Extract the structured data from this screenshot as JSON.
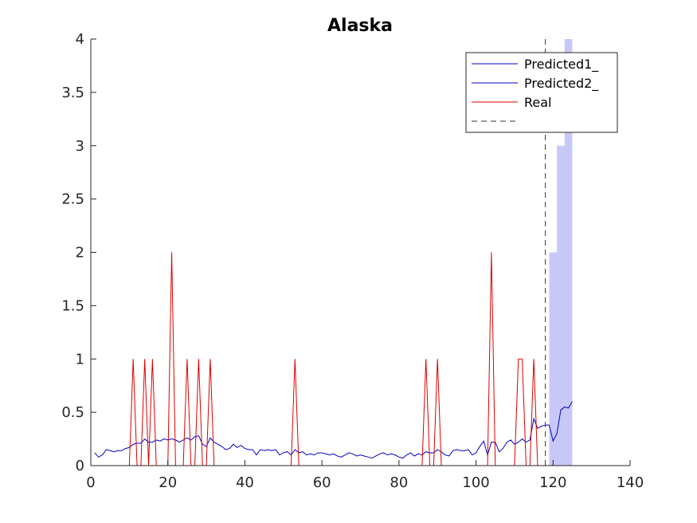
{
  "chart_data": {
    "type": "line",
    "title": "Alaska",
    "xlabel": "",
    "ylabel": "",
    "xlim": [
      0,
      140
    ],
    "ylim": [
      0,
      4
    ],
    "xticks": [
      0,
      20,
      40,
      60,
      80,
      100,
      120,
      140
    ],
    "yticks": [
      0,
      0.5,
      1,
      1.5,
      2,
      2.5,
      3,
      3.5,
      4
    ],
    "grid": false,
    "legend_position": "top-right",
    "legend": [
      "Predicted1_",
      "Predicted2_",
      "Real",
      ""
    ],
    "colors": {
      "predicted": "#0000c8",
      "real": "#dd0000",
      "band": "#c8c8f8",
      "divider": "#333333"
    },
    "divider_x": 118,
    "series": [
      {
        "name": "Predicted1_",
        "x": [
          1,
          2,
          3,
          4,
          5,
          6,
          7,
          8,
          9,
          10,
          11,
          12,
          13,
          14,
          15,
          16,
          17,
          18,
          19,
          20,
          21,
          22,
          23,
          24,
          25,
          26,
          27,
          28,
          29,
          30,
          31,
          32,
          33,
          34,
          35,
          36,
          37,
          38,
          39,
          40,
          41,
          42,
          43,
          44,
          45,
          46,
          47,
          48,
          49,
          50,
          51,
          52,
          53,
          54,
          55,
          56,
          57,
          58,
          59,
          60,
          61,
          62,
          63,
          64,
          65,
          66,
          67,
          68,
          69,
          70,
          71,
          72,
          73,
          74,
          75,
          76,
          77,
          78,
          79,
          80,
          81,
          82,
          83,
          84,
          85,
          86,
          87,
          88,
          89,
          90,
          91,
          92,
          93,
          94,
          95,
          96,
          97,
          98,
          99,
          100,
          101,
          102,
          103,
          104,
          105,
          106,
          107,
          108,
          109,
          110,
          111,
          112,
          113,
          114,
          115,
          116,
          117,
          118
        ],
        "values": [
          0.12,
          0.08,
          0.1,
          0.15,
          0.14,
          0.13,
          0.14,
          0.14,
          0.16,
          0.17,
          0.2,
          0.21,
          0.21,
          0.25,
          0.22,
          0.22,
          0.24,
          0.23,
          0.25,
          0.24,
          0.25,
          0.24,
          0.22,
          0.24,
          0.26,
          0.24,
          0.27,
          0.28,
          0.2,
          0.18,
          0.26,
          0.22,
          0.2,
          0.18,
          0.15,
          0.16,
          0.2,
          0.17,
          0.19,
          0.16,
          0.15,
          0.15,
          0.1,
          0.15,
          0.14,
          0.15,
          0.14,
          0.15,
          0.1,
          0.12,
          0.13,
          0.1,
          0.15,
          0.12,
          0.13,
          0.1,
          0.11,
          0.1,
          0.12,
          0.12,
          0.11,
          0.1,
          0.11,
          0.09,
          0.08,
          0.1,
          0.12,
          0.11,
          0.09,
          0.1,
          0.09,
          0.08,
          0.07,
          0.09,
          0.11,
          0.12,
          0.1,
          0.11,
          0.1,
          0.08,
          0.07,
          0.1,
          0.12,
          0.09,
          0.11,
          0.1,
          0.13,
          0.12,
          0.12,
          0.15,
          0.13,
          0.1,
          0.09,
          0.14,
          0.15,
          0.14,
          0.14,
          0.15,
          0.1,
          0.12,
          0.18,
          0.23,
          0.1,
          0.22,
          0.22,
          0.13,
          0.16,
          0.22,
          0.24,
          0.2,
          0.22,
          0.25,
          0.22,
          0.24,
          0.44,
          0.35,
          0.37,
          0.38
        ]
      },
      {
        "name": "Predicted2_",
        "x": [
          118,
          119,
          120,
          121,
          122,
          123,
          124,
          125
        ],
        "values": [
          0.38,
          0.38,
          0.23,
          0.3,
          0.52,
          0.55,
          0.54,
          0.6
        ]
      },
      {
        "name": "Real",
        "x": [
          1,
          2,
          3,
          4,
          5,
          6,
          7,
          8,
          9,
          10,
          11,
          12,
          13,
          14,
          15,
          16,
          17,
          18,
          19,
          20,
          21,
          22,
          23,
          24,
          25,
          26,
          27,
          28,
          29,
          30,
          31,
          32,
          33,
          34,
          35,
          36,
          37,
          38,
          39,
          40,
          41,
          42,
          43,
          44,
          45,
          46,
          47,
          48,
          49,
          50,
          51,
          52,
          53,
          54,
          55,
          56,
          57,
          58,
          59,
          60,
          61,
          62,
          63,
          64,
          65,
          66,
          67,
          68,
          69,
          70,
          71,
          72,
          73,
          74,
          75,
          76,
          77,
          78,
          79,
          80,
          81,
          82,
          83,
          84,
          85,
          86,
          87,
          88,
          89,
          90,
          91,
          92,
          93,
          94,
          95,
          96,
          97,
          98,
          99,
          100,
          101,
          102,
          103,
          104,
          105,
          106,
          107,
          108,
          109,
          110,
          111,
          112,
          113,
          114,
          115,
          116,
          117,
          118
        ],
        "values": [
          0,
          0,
          0,
          0,
          0,
          0,
          0,
          0,
          0,
          0,
          1,
          0,
          0,
          1,
          0,
          1,
          0,
          0,
          0,
          0,
          2,
          0,
          0,
          0,
          1,
          0,
          0,
          1,
          0,
          0,
          1,
          0,
          0,
          0,
          0,
          0,
          0,
          0,
          0,
          0,
          0,
          0,
          0,
          0,
          0,
          0,
          0,
          0,
          0,
          0,
          0,
          0,
          1,
          0,
          0,
          0,
          0,
          0,
          0,
          0,
          0,
          0,
          0,
          0,
          0,
          0,
          0,
          0,
          0,
          0,
          0,
          0,
          0,
          0,
          0,
          0,
          0,
          0,
          0,
          0,
          0,
          0,
          0,
          0,
          0,
          0,
          1,
          0,
          0,
          1,
          0,
          0,
          0,
          0,
          0,
          0,
          0,
          0,
          0,
          0,
          0,
          0,
          0,
          2,
          0,
          0,
          0,
          0,
          0,
          0,
          1,
          1,
          0,
          0,
          1,
          0,
          0,
          0
        ]
      }
    ],
    "band": {
      "x": [
        119,
        120,
        121,
        122,
        123,
        124,
        125
      ],
      "lower": [
        0,
        0,
        0,
        0,
        0,
        0,
        0
      ],
      "upper": [
        2,
        2,
        3,
        3,
        4,
        4,
        4
      ]
    }
  }
}
